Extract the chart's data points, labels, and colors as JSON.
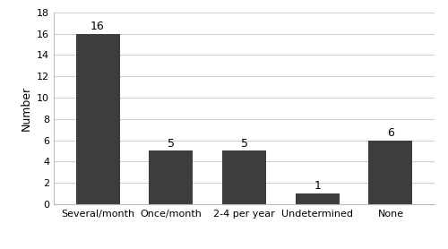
{
  "categories": [
    "Several/month",
    "Once/month",
    "2-4 per year",
    "Undetermined",
    "None"
  ],
  "values": [
    16,
    5,
    5,
    1,
    6
  ],
  "bar_color": "#3d3d3d",
  "bar_edge_color": "#3d3d3d",
  "ylabel": "Number",
  "ylim": [
    0,
    18
  ],
  "yticks": [
    0,
    2,
    4,
    6,
    8,
    10,
    12,
    14,
    16,
    18
  ],
  "title": "",
  "label_fontsize": 9,
  "tick_fontsize": 8,
  "ylabel_fontsize": 9,
  "bar_width": 0.6,
  "background_color": "#ffffff",
  "grid_color": "#d0d0d0",
  "value_labels": [
    "16",
    "5",
    "5",
    "1",
    "6"
  ],
  "figsize": [
    5.0,
    2.78
  ],
  "dpi": 100
}
